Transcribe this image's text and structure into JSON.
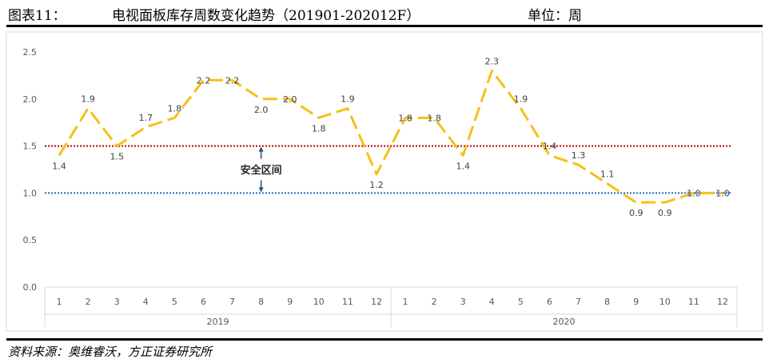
{
  "header": {
    "figure_label": "图表11：",
    "title": "电视面板库存周数变化趋势（201901-202012F）",
    "unit": "单位：周"
  },
  "footer": {
    "source": "资料来源：奥维睿沃，方正证券研究所"
  },
  "colors": {
    "line": "#F5C018",
    "upper_band": "#C00000",
    "lower_band": "#1F6FC5",
    "arrow": "#1F4E79",
    "axis_text": "#595959",
    "border": "#D9D9D9"
  },
  "chart_data": {
    "type": "line",
    "line_style": "dashed",
    "title": "",
    "xlabel": "",
    "ylabel": "",
    "ylim": [
      0,
      2.5
    ],
    "yticks": [
      "0.0",
      "0.5",
      "1.0",
      "1.5",
      "2.0",
      "2.5"
    ],
    "grid": false,
    "categories": [
      "1",
      "2",
      "3",
      "4",
      "5",
      "6",
      "7",
      "8",
      "9",
      "10",
      "11",
      "12",
      "1",
      "2",
      "3",
      "4",
      "5",
      "6",
      "7",
      "8",
      "9",
      "10",
      "11",
      "12"
    ],
    "groups": [
      {
        "label": "2019",
        "count": 12
      },
      {
        "label": "2020",
        "count": 12
      }
    ],
    "series": [
      {
        "values": [
          1.4,
          1.9,
          1.5,
          1.7,
          1.8,
          2.2,
          2.2,
          2.0,
          2.0,
          1.8,
          1.9,
          1.2,
          1.8,
          1.8,
          1.4,
          2.3,
          1.9,
          1.4,
          1.3,
          1.1,
          0.9,
          0.9,
          1.0,
          1.0
        ],
        "labels": [
          "1.4",
          "1.9",
          "1.5",
          "1.7",
          "1.8",
          "2.2",
          "2.2",
          "2.0",
          "2.0",
          "1.8",
          "1.9",
          "1.2",
          "1.8",
          "1.8",
          "1.4",
          "2.3",
          "1.9",
          "1.4",
          "1.3",
          "1.1",
          "0.9",
          "0.9",
          "1.0",
          "1.0"
        ]
      }
    ],
    "reference_lines": [
      {
        "name": "upper",
        "value": 1.5
      },
      {
        "name": "lower",
        "value": 1.0
      }
    ],
    "annotation": {
      "text": "安全区间",
      "category_index": 7
    }
  }
}
